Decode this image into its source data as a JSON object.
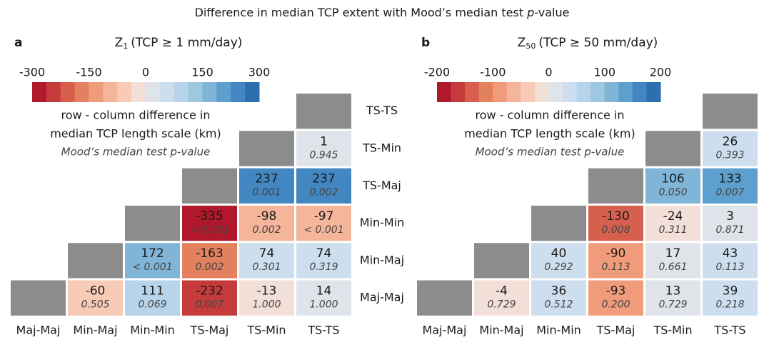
{
  "title_parts": [
    "Difference in median TCP extent with Mood’s median test ",
    "p",
    "-value"
  ],
  "chart_data": [
    {
      "type": "heatmap",
      "panel": "a",
      "title_symbol": "Z",
      "title_subscript": "1",
      "title_condition": "(TCP ≥ 1 mm/day)",
      "row_labels": [
        "TS-TS",
        "TS-Min",
        "TS-Maj",
        "Min-Min",
        "Min-Maj",
        "Maj-Maj"
      ],
      "col_labels": [
        "Maj-Maj",
        "Min-Maj",
        "Min-Min",
        "TS-Maj",
        "TS-Min",
        "TS-TS"
      ],
      "values": [
        [
          null,
          null,
          null,
          null,
          null,
          null
        ],
        [
          null,
          null,
          null,
          null,
          null,
          1
        ],
        [
          null,
          null,
          null,
          null,
          237,
          237
        ],
        [
          null,
          null,
          null,
          -335,
          -98,
          -97
        ],
        [
          null,
          null,
          172,
          -163,
          74,
          74
        ],
        [
          null,
          -60,
          111,
          -232,
          -13,
          14
        ]
      ],
      "p_values": [
        [
          null,
          null,
          null,
          null,
          null,
          null
        ],
        [
          null,
          null,
          null,
          null,
          null,
          "0.945"
        ],
        [
          null,
          null,
          null,
          null,
          "0.001",
          "0.002"
        ],
        [
          null,
          null,
          null,
          "< 0.001",
          "0.002",
          "< 0.001"
        ],
        [
          null,
          null,
          "< 0.001",
          "0.002",
          "0.301",
          "0.319"
        ],
        [
          null,
          "0.505",
          "0.069",
          "0.007",
          "1.000",
          "1.000"
        ]
      ],
      "clim": [
        -300,
        300
      ],
      "cticks": [
        -300,
        -150,
        0,
        150,
        300
      ],
      "colors": [
        "#b2182b",
        "#c53a3a",
        "#d6604d",
        "#e3805e",
        "#f09c7b",
        "#f4b59a",
        "#f7cbb5",
        "#f2dfd7",
        "#dfe4ea",
        "#cddfee",
        "#b7d4ea",
        "#9ec8e2",
        "#80b5d8",
        "#5d9fcf",
        "#4387c2",
        "#2e6fb0"
      ],
      "diagonal_color": "#8c8c8c",
      "colorbar_label": [
        "row - column difference in",
        "median TCP length scale (km)"
      ],
      "p_value_note": "Mood’s median test p-value"
    },
    {
      "type": "heatmap",
      "panel": "b",
      "title_symbol": "Z",
      "title_subscript": "50",
      "title_condition": "(TCP ≥ 50 mm/day)",
      "col_labels": [
        "Maj-Maj",
        "Min-Maj",
        "Min-Min",
        "TS-Maj",
        "TS-Min",
        "TS-TS"
      ],
      "values": [
        [
          null,
          null,
          null,
          null,
          null,
          null
        ],
        [
          null,
          null,
          null,
          null,
          null,
          26
        ],
        [
          null,
          null,
          null,
          null,
          106,
          133
        ],
        [
          null,
          null,
          null,
          -130,
          -24,
          3
        ],
        [
          null,
          null,
          40,
          -90,
          17,
          43
        ],
        [
          null,
          -4,
          36,
          -93,
          13,
          39
        ]
      ],
      "p_values": [
        [
          null,
          null,
          null,
          null,
          null,
          null
        ],
        [
          null,
          null,
          null,
          null,
          null,
          "0.393"
        ],
        [
          null,
          null,
          null,
          null,
          "0.050",
          "0.007"
        ],
        [
          null,
          null,
          null,
          "0.008",
          "0.311",
          "0.871"
        ],
        [
          null,
          null,
          "0.292",
          "0.113",
          "0.661",
          "0.113"
        ],
        [
          null,
          "0.729",
          "0.512",
          "0.200",
          "0.729",
          "0.218"
        ]
      ],
      "clim": [
        -200,
        200
      ],
      "cticks": [
        -200,
        -100,
        0,
        100,
        200
      ],
      "colors": [
        "#b2182b",
        "#c53a3a",
        "#d6604d",
        "#e3805e",
        "#f09c7b",
        "#f4b59a",
        "#f7cbb5",
        "#f2dfd7",
        "#dfe4ea",
        "#cddfee",
        "#b7d4ea",
        "#9ec8e2",
        "#80b5d8",
        "#5d9fcf",
        "#4387c2",
        "#2e6fb0"
      ],
      "diagonal_color": "#8c8c8c",
      "colorbar_label": [
        "row - column difference in",
        "median TCP length scale (km)"
      ],
      "p_value_note": "Mood’s median test p-value"
    }
  ]
}
